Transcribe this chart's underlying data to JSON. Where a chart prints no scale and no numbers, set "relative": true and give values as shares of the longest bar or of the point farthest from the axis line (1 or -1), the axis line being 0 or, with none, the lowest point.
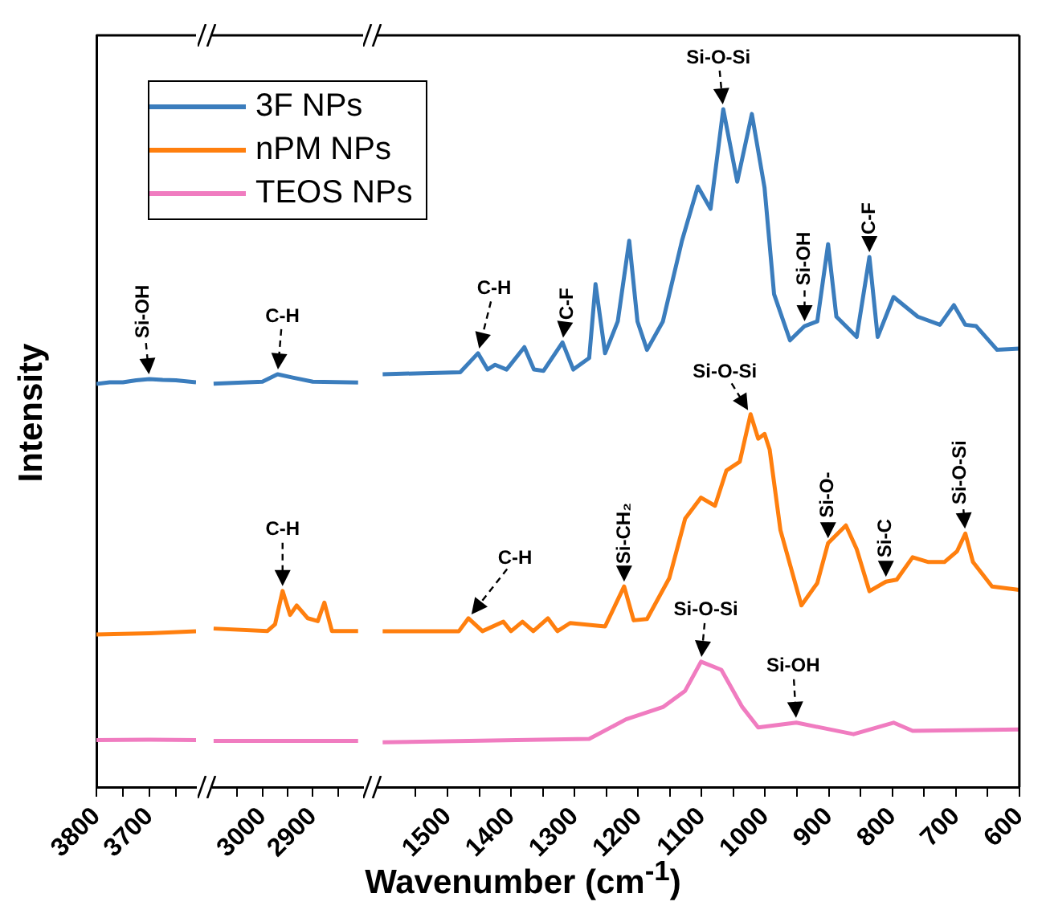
{
  "chart_data": [
    {
      "type": "line",
      "relative": true,
      "ylabel": "Intensity",
      "xlabel": "Wavenumber (cm$^{-1}$)",
      "xlim": [
        3800,
        3612
      ],
      "xticks": [
        3800,
        {
          "value": 3750,
          "label": null
        },
        3700,
        {
          "value": 3650,
          "label": null
        }
      ],
      "series": [
        {
          "color": "#3b7dbd",
          "x": [
            3800,
            3775,
            3750,
            3725,
            3700,
            3675,
            3650,
            3612
          ],
          "values": [
            0.988,
            0.992,
            0.992,
            0.997,
            1,
            0.998,
            0.997,
            0.992
          ]
        },
        {
          "color": "#ff7f0e",
          "x": [
            3800,
            3700,
            3612
          ],
          "values": [
            0.374,
            0.377,
            0.382
          ]
        },
        {
          "color": "#f07cc0",
          "x": [
            3800,
            3700,
            3612
          ],
          "values": [
            0.115,
            0.116,
            0.115
          ]
        }
      ],
      "annotations": [
        {
          "text": "Si-OH",
          "x": 3700,
          "y": 1
        }
      ]
    },
    {
      "type": "line",
      "relative": true,
      "legend": "top",
      "xlim": [
        3100,
        2800
      ],
      "xticks": [
        {
          "value": 3050,
          "label": null
        },
        3000,
        {
          "value": 2950,
          "label": null
        },
        2900,
        {
          "value": 2850,
          "label": null
        }
      ],
      "series": [
        {
          "name": "3F NPs",
          "color": "#3b7dbd",
          "x": [
            3097,
            3000,
            2970,
            2940,
            2900,
            2810
          ],
          "values": [
            0.977,
            0.982,
            1,
            0.992,
            0.982,
            0.98
          ]
        },
        {
          "name": "nPM NPs",
          "color": "#ff7f0e",
          "x": [
            3097,
            2990,
            2975,
            2960,
            2945,
            2932,
            2910,
            2890,
            2877,
            2862,
            2810
          ],
          "values": [
            0.384,
            0.378,
            0.394,
            0.475,
            0.417,
            0.44,
            0.409,
            0.402,
            0.447,
            0.378,
            0.378
          ]
        },
        {
          "name": "TEOS NPs",
          "color": "#f07cc0",
          "x": [
            3097,
            2950,
            2810
          ],
          "values": [
            0.112,
            0.112,
            0.112
          ]
        }
      ],
      "annotations": [
        {
          "text": "C-H",
          "x": 2970,
          "y": 1
        },
        {
          "text": "C-H",
          "x": 2960,
          "y": 0.475
        }
      ]
    },
    {
      "type": "line",
      "relative": true,
      "xlim": [
        1610,
        600
      ],
      "xticks": [
        {
          "value": 1550,
          "label": null
        },
        1500,
        {
          "value": 1450,
          "label": null
        },
        1400,
        {
          "value": 1350,
          "label": null
        },
        1300,
        {
          "value": 1250,
          "label": null
        },
        1200,
        {
          "value": 1150,
          "label": null
        },
        1100,
        {
          "value": 1050,
          "label": null
        },
        1000,
        {
          "value": 950,
          "label": null
        },
        900,
        {
          "value": 850,
          "label": null
        },
        800,
        {
          "value": 750,
          "label": null
        },
        700,
        {
          "value": 650,
          "label": null
        },
        600
      ],
      "series": [
        {
          "color": "#3b7dbd",
          "x": [
            1602,
            1480,
            1452,
            1437,
            1425,
            1407,
            1379,
            1364,
            1349,
            1319,
            1302,
            1277,
            1267,
            1252,
            1232,
            1214,
            1201,
            1186,
            1161,
            1131,
            1106,
            1086,
            1066,
            1044,
            1021,
            1001,
            986,
            961,
            938,
            918,
            901,
            888,
            856,
            836,
            823,
            798,
            760,
            725,
            703,
            685,
            668,
            635,
            600
          ],
          "values": [
            0.609,
            0.612,
            0.64,
            0.616,
            0.623,
            0.616,
            0.649,
            0.616,
            0.614,
            0.656,
            0.616,
            0.633,
            0.742,
            0.64,
            0.687,
            0.806,
            0.687,
            0.645,
            0.687,
            0.806,
            0.886,
            0.853,
            1,
            0.893,
            0.993,
            0.884,
            0.727,
            0.659,
            0.68,
            0.687,
            0.801,
            0.694,
            0.664,
            0.782,
            0.664,
            0.723,
            0.694,
            0.682,
            0.711,
            0.682,
            0.68,
            0.645,
            0.647
          ]
        },
        {
          "color": "#ff7f0e",
          "x": [
            1602,
            1482,
            1467,
            1445,
            1412,
            1400,
            1382,
            1365,
            1342,
            1327,
            1307,
            1252,
            1222,
            1207,
            1186,
            1151,
            1126,
            1101,
            1079,
            1061,
            1040,
            1023,
            1011,
            1001,
            993,
            976,
            943,
            918,
            901,
            873,
            856,
            836,
            810,
            793,
            768,
            743,
            718,
            698,
            685,
            673,
            643,
            600
          ],
          "values": [
            0.23,
            0.23,
            0.249,
            0.23,
            0.244,
            0.23,
            0.244,
            0.23,
            0.249,
            0.23,
            0.242,
            0.237,
            0.296,
            0.246,
            0.248,
            0.308,
            0.396,
            0.427,
            0.415,
            0.467,
            0.48,
            0.55,
            0.514,
            0.521,
            0.498,
            0.379,
            0.268,
            0.301,
            0.36,
            0.386,
            0.351,
            0.289,
            0.303,
            0.306,
            0.339,
            0.332,
            0.332,
            0.348,
            0.374,
            0.332,
            0.296,
            0.291
          ]
        },
        {
          "color": "#f07cc0",
          "x": [
            1602,
            1277,
            1219,
            1161,
            1126,
            1101,
            1069,
            1036,
            1011,
            951,
            861,
            798,
            768,
            600
          ],
          "values": [
            0.066,
            0.071,
            0.1,
            0.118,
            0.142,
            0.185,
            0.173,
            0.118,
            0.088,
            0.095,
            0.078,
            0.095,
            0.083,
            0.085
          ]
        }
      ],
      "annotations": [
        {
          "text": "C-H",
          "x": 1452,
          "y": 0.64
        },
        {
          "text": "C-F",
          "x": 1319,
          "y": 0.656
        },
        {
          "text": "Si-O-Si",
          "x": 1066,
          "y": 1
        },
        {
          "text": "Si-OH",
          "x": 938,
          "y": 0.68
        },
        {
          "text": "C-F",
          "x": 836,
          "y": 0.782
        },
        {
          "text": "Si-CH₂",
          "x": 1222,
          "y": 0.296
        },
        {
          "text": "Si-O-Si",
          "x": 1023,
          "y": 0.55
        },
        {
          "text": "Si-O-",
          "x": 901,
          "y": 0.36
        },
        {
          "text": "Si-C",
          "x": 810,
          "y": 0.303
        },
        {
          "text": "Si-O-Si",
          "x": 685,
          "y": 0.374
        },
        {
          "text": "C-H",
          "x": 1467,
          "y": 0.249
        },
        {
          "text": "Si-O-Si",
          "x": 1101,
          "y": 0.185
        },
        {
          "text": "Si-OH",
          "x": 951,
          "y": 0.095
        }
      ]
    }
  ]
}
